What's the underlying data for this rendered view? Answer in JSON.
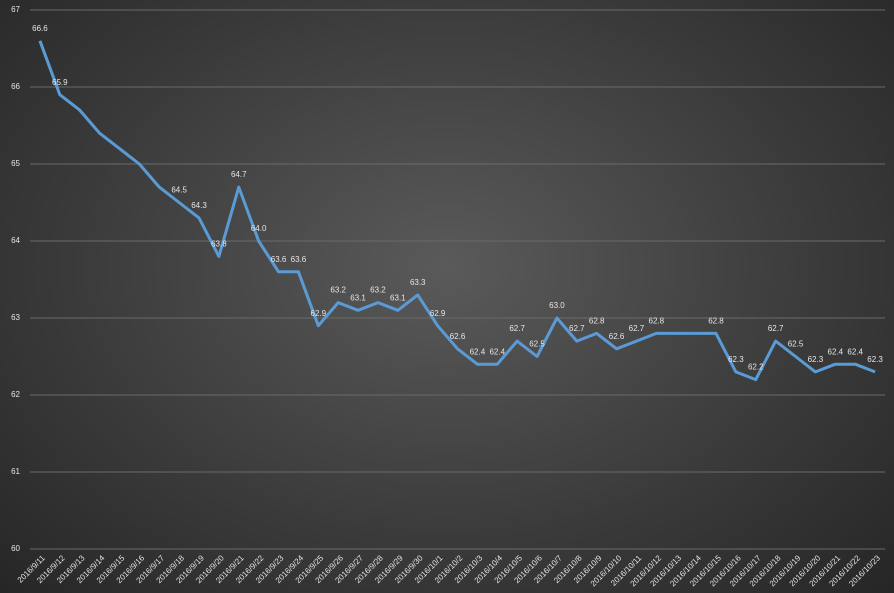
{
  "chart_data": {
    "type": "line",
    "categories": [
      "2016/9/11",
      "2016/9/12",
      "2016/9/13",
      "2016/9/14",
      "2016/9/15",
      "2016/9/16",
      "2016/9/17",
      "2016/9/18",
      "2016/9/19",
      "2016/9/20",
      "2016/9/21",
      "2016/9/22",
      "2016/9/23",
      "2016/9/24",
      "2016/9/25",
      "2016/9/26",
      "2016/9/27",
      "2016/9/28",
      "2016/9/29",
      "2016/9/30",
      "2016/10/1",
      "2016/10/2",
      "2016/10/3",
      "2016/10/4",
      "2016/10/5",
      "2016/10/6",
      "2016/10/7",
      "2016/10/8",
      "2016/10/9",
      "2016/10/10",
      "2016/10/11",
      "2016/10/12",
      "2016/10/13",
      "2016/10/14",
      "2016/10/15",
      "2016/10/16",
      "2016/10/17",
      "2016/10/18",
      "2016/10/19",
      "2016/10/20",
      "2016/10/21",
      "2016/10/22",
      "2016/10/23"
    ],
    "values": [
      66.6,
      65.9,
      65.7,
      65.4,
      65.2,
      65.0,
      64.7,
      64.5,
      64.3,
      63.8,
      64.7,
      64.0,
      63.6,
      63.6,
      62.9,
      63.2,
      63.1,
      63.2,
      63.1,
      63.3,
      62.9,
      62.6,
      62.4,
      62.4,
      62.7,
      62.5,
      63.0,
      62.7,
      62.8,
      62.6,
      62.7,
      62.8,
      62.8,
      62.8,
      62.8,
      62.3,
      62.2,
      62.7,
      62.5,
      62.3,
      62.4,
      62.4,
      62.3
    ],
    "value_labels": [
      "66.6",
      "65.9",
      null,
      null,
      null,
      null,
      null,
      "64.5",
      "64.3",
      "63.8",
      "64.7",
      "64.0",
      "63.6",
      "63.6",
      "62.9",
      "63.2",
      "63.1",
      "63.2",
      "63.1",
      "63.3",
      "62.9",
      "62.6",
      "62.4",
      "62.4",
      "62.7",
      "62.5",
      "63.0",
      "62.7",
      "62.8",
      "62.6",
      "62.7",
      "62.8",
      null,
      null,
      "62.8",
      "62.3",
      "62.2",
      "62.7",
      "62.5",
      "62.3",
      "62.4",
      "62.4",
      "62.3"
    ],
    "color": "#5b9bd5",
    "ylim": [
      60,
      67
    ],
    "yticks": [
      60,
      61,
      62,
      63,
      64,
      65,
      66,
      67
    ],
    "grid": true
  }
}
